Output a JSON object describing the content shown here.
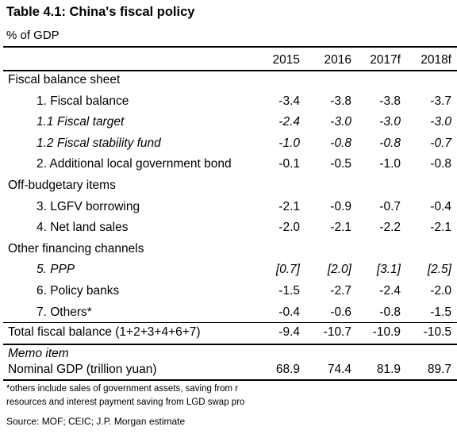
{
  "title": "Table 4.1: China's fiscal policy",
  "subtitle": "% of GDP",
  "columns": [
    "2015",
    "2016",
    "2017f",
    "2018f"
  ],
  "rows": [
    {
      "label": "Fiscal balance sheet",
      "indent": 0,
      "italic": false,
      "values": [
        "",
        "",
        "",
        ""
      ]
    },
    {
      "label": "1. Fiscal balance",
      "indent": 1,
      "italic": false,
      "values": [
        "-3.4",
        "-3.8",
        "-3.8",
        "-3.7"
      ]
    },
    {
      "label": "1.1 Fiscal target",
      "indent": 1,
      "italic": true,
      "values": [
        "-2.4",
        "-3.0",
        "-3.0",
        "-3.0"
      ]
    },
    {
      "label": "1.2 Fiscal stability fund",
      "indent": 1,
      "italic": true,
      "values": [
        "-1.0",
        "-0.8",
        "-0.8",
        "-0.7"
      ]
    },
    {
      "label": "2. Additional local government bond",
      "indent": 1,
      "italic": false,
      "values": [
        "-0.1",
        "-0.5",
        "-1.0",
        "-0.8"
      ]
    },
    {
      "label": "Off-budgetary items",
      "indent": 0,
      "italic": false,
      "values": [
        "",
        "",
        "",
        ""
      ]
    },
    {
      "label": "3. LGFV borrowing",
      "indent": 1,
      "italic": false,
      "values": [
        "-2.1",
        "-0.9",
        "-0.7",
        "-0.4"
      ]
    },
    {
      "label": "4. Net land sales",
      "indent": 1,
      "italic": false,
      "values": [
        "-2.0",
        "-2.1",
        "-2.2",
        "-2.1"
      ]
    },
    {
      "label": "Other financing channels",
      "indent": 0,
      "italic": false,
      "values": [
        "",
        "",
        "",
        ""
      ]
    },
    {
      "label": "5. PPP",
      "indent": 1,
      "italic": true,
      "values": [
        "[0.7]",
        "[2.0]",
        "[3.1]",
        "[2.5]"
      ]
    },
    {
      "label": "6. Policy banks",
      "indent": 1,
      "italic": false,
      "values": [
        "-1.5",
        "-2.7",
        "-2.4",
        "-2.0"
      ]
    },
    {
      "label": "7. Others*",
      "indent": 1,
      "italic": false,
      "values": [
        "-0.4",
        "-0.6",
        "-0.8",
        "-1.5"
      ]
    }
  ],
  "total": {
    "label": "Total fiscal balance (1+2+3+4+6+7)",
    "values": [
      "-9.4",
      "-10.7",
      "-10.9",
      "-10.5"
    ]
  },
  "memo": {
    "label": "Memo item"
  },
  "gdp": {
    "label": "Nominal GDP (trillion yuan)",
    "values": [
      "68.9",
      "74.4",
      "81.9",
      "89.7"
    ]
  },
  "footnote": {
    "line1": "*others include sales of government assets, saving from r",
    "line2": "resources and interest payment saving from LGD swap pro"
  },
  "source": "Source: MOF; CEIC; J.P. Morgan estimate"
}
